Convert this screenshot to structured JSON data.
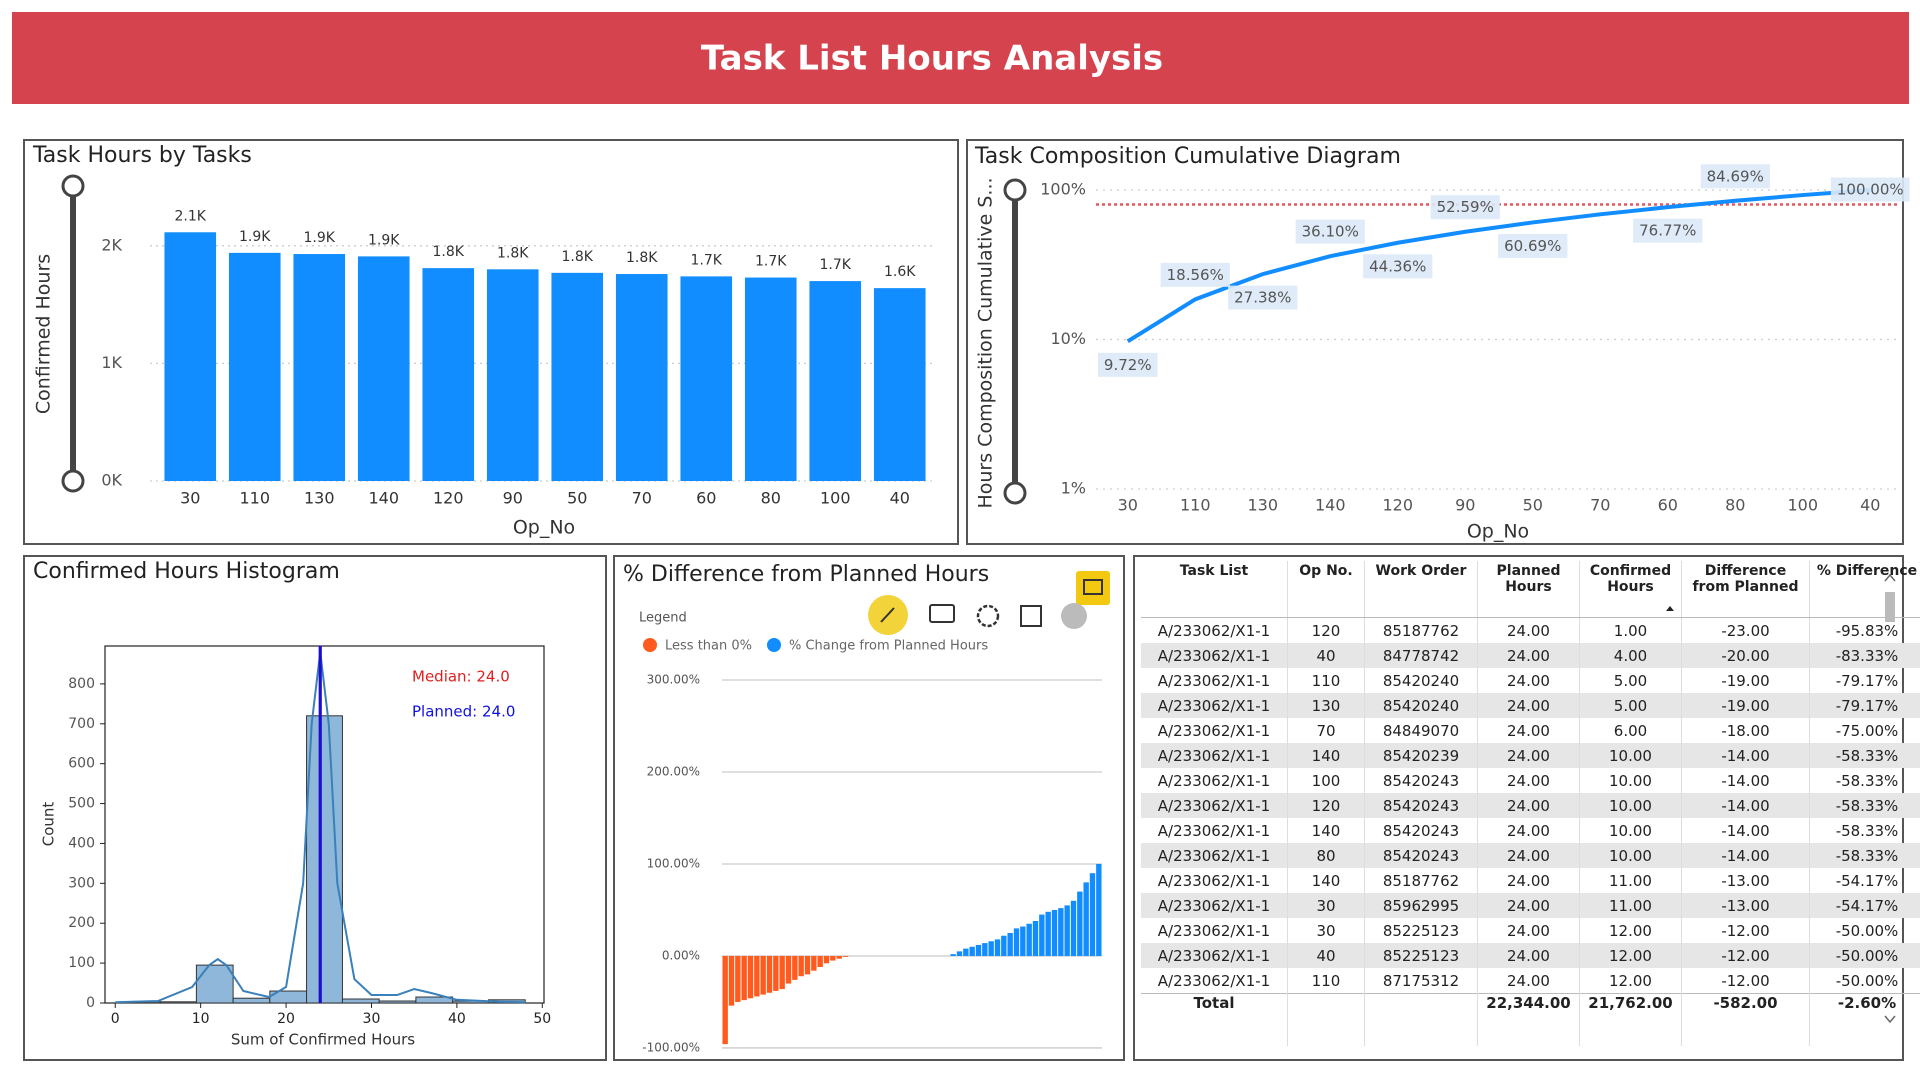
{
  "header": {
    "title": "Task List Hours Analysis"
  },
  "chart_data": [
    {
      "type": "bar",
      "title": "Task Hours by Tasks",
      "x_label": "Op_No",
      "y_label": "Confirmed Hours",
      "categories": [
        "30",
        "110",
        "130",
        "140",
        "120",
        "90",
        "50",
        "70",
        "60",
        "80",
        "100",
        "40"
      ],
      "values": [
        2115,
        1940,
        1930,
        1910,
        1810,
        1800,
        1770,
        1760,
        1740,
        1730,
        1700,
        1640
      ],
      "value_labels": [
        "2.1K",
        "1.9K",
        "1.9K",
        "1.9K",
        "1.8K",
        "1.8K",
        "1.8K",
        "1.8K",
        "1.7K",
        "1.7K",
        "1.7K",
        "1.6K"
      ],
      "color": "#118dff",
      "ylim": [
        0,
        2500
      ],
      "yticks": [
        {
          "value": 0,
          "label": "0K"
        },
        {
          "value": 1000,
          "label": "1K"
        },
        {
          "value": 2000,
          "label": "2K"
        }
      ],
      "grid": true
    },
    {
      "type": "line",
      "title": "Task Composition Cumulative Diagram",
      "x_label": "Op_No",
      "y_label": "Hours Composition Cumulative S...",
      "categories": [
        "30",
        "110",
        "130",
        "140",
        "120",
        "90",
        "50",
        "70",
        "60",
        "80",
        "100",
        "40"
      ],
      "values": [
        9.72,
        18.56,
        27.38,
        36.1,
        44.36,
        52.59,
        60.69,
        68.78,
        76.77,
        84.69,
        92.5,
        100
      ],
      "value_labels": [
        "9.72%",
        "18.56%",
        "27.38%",
        "36.10%",
        "44.36%",
        "52.59%",
        "60.69%",
        null,
        "76.77%",
        "84.69%",
        null,
        "100.00%"
      ],
      "color": "#118dff",
      "log_scale": true,
      "ylim": [
        1,
        100
      ],
      "yticks": [
        {
          "value": 1,
          "label": "1%"
        },
        {
          "value": 10,
          "label": "10%"
        },
        {
          "value": 100,
          "label": "100%"
        }
      ],
      "grid": true,
      "reference_line": 80,
      "reference_color": "#e05a62"
    },
    {
      "type": "histogram",
      "title": "Confirmed Hours Histogram",
      "x_label": "Sum of Confirmed Hours",
      "y_label": "Count",
      "bins": [
        1,
        5.3,
        9.5,
        13.8,
        18.1,
        22.4,
        26.6,
        30.9,
        35.2,
        39.5,
        43.7,
        48
      ],
      "values": [
        3,
        3,
        95,
        12,
        30,
        720,
        10,
        5,
        15,
        5,
        8
      ],
      "color": "#8fb7d9",
      "kde": {
        "x": [
          0,
          5,
          9,
          11,
          12,
          13,
          15,
          18,
          20,
          22,
          23,
          24,
          25,
          26,
          28,
          30,
          33,
          35,
          37,
          40,
          45,
          48
        ],
        "values": [
          2,
          5,
          40,
          95,
          110,
          95,
          30,
          15,
          40,
          300,
          700,
          880,
          700,
          300,
          60,
          20,
          20,
          35,
          25,
          8,
          3,
          2
        ],
        "color": "#3a80ba"
      },
      "annotations": [
        {
          "label": "Median: 24.0",
          "value": 24,
          "color": "#e02020"
        },
        {
          "label": "Planned: 24.0",
          "value": 24,
          "color": "#1010e0"
        }
      ],
      "xlim": [
        -1.2,
        50.2
      ],
      "xticks": [
        0,
        10,
        20,
        30,
        40,
        50
      ],
      "ylim": [
        0,
        895
      ],
      "yticks": [
        0,
        100,
        200,
        300,
        400,
        500,
        600,
        700,
        800
      ],
      "grid": false
    },
    {
      "type": "bar",
      "title": "% Difference from Planned Hours",
      "legend": {
        "title": "Legend",
        "items": [
          {
            "name": "Less than 0%",
            "color": "#ff5b1f"
          },
          {
            "name": "% Change from Planned Hours",
            "color": "#118dff"
          }
        ]
      },
      "values": [
        -95.83,
        -54,
        -50,
        -48,
        -46,
        -44,
        -42,
        -40,
        -38,
        -36,
        -30,
        -26,
        -22,
        -20,
        -16,
        -12,
        -8,
        -5,
        -3,
        -1,
        0,
        0,
        0,
        0,
        0,
        0,
        0,
        0,
        0,
        0,
        0,
        0,
        0,
        0,
        0,
        0,
        2,
        5,
        8,
        10,
        12,
        14,
        16,
        18,
        22,
        25,
        30,
        32,
        35,
        38,
        45,
        48,
        50,
        52,
        55,
        60,
        70,
        80,
        90,
        100
      ],
      "ylim": [
        -107,
        305
      ],
      "yticks": [
        {
          "value": -100,
          "label": "-100.00%"
        },
        {
          "value": 0,
          "label": "0.00%"
        },
        {
          "value": 100,
          "label": "100.00%"
        },
        {
          "value": 200,
          "label": "200.00%"
        },
        {
          "value": 300,
          "label": "300.00%"
        }
      ],
      "grid": true
    }
  ],
  "table": {
    "columns": [
      "Task List",
      "Op No.",
      "Work Order",
      "Planned Hours",
      "Confirmed Hours",
      "Difference from Planned",
      "% Difference"
    ],
    "rows": [
      [
        "A/233062/X1-1",
        "120",
        "85187762",
        "24.00",
        "1.00",
        "-23.00",
        "-95.83%"
      ],
      [
        "A/233062/X1-1",
        "40",
        "84778742",
        "24.00",
        "4.00",
        "-20.00",
        "-83.33%"
      ],
      [
        "A/233062/X1-1",
        "110",
        "85420240",
        "24.00",
        "5.00",
        "-19.00",
        "-79.17%"
      ],
      [
        "A/233062/X1-1",
        "130",
        "85420240",
        "24.00",
        "5.00",
        "-19.00",
        "-79.17%"
      ],
      [
        "A/233062/X1-1",
        "70",
        "84849070",
        "24.00",
        "6.00",
        "-18.00",
        "-75.00%"
      ],
      [
        "A/233062/X1-1",
        "140",
        "85420239",
        "24.00",
        "10.00",
        "-14.00",
        "-58.33%"
      ],
      [
        "A/233062/X1-1",
        "100",
        "85420243",
        "24.00",
        "10.00",
        "-14.00",
        "-58.33%"
      ],
      [
        "A/233062/X1-1",
        "120",
        "85420243",
        "24.00",
        "10.00",
        "-14.00",
        "-58.33%"
      ],
      [
        "A/233062/X1-1",
        "140",
        "85420243",
        "24.00",
        "10.00",
        "-14.00",
        "-58.33%"
      ],
      [
        "A/233062/X1-1",
        "80",
        "85420243",
        "24.00",
        "10.00",
        "-14.00",
        "-58.33%"
      ],
      [
        "A/233062/X1-1",
        "140",
        "85187762",
        "24.00",
        "11.00",
        "-13.00",
        "-54.17%"
      ],
      [
        "A/233062/X1-1",
        "30",
        "85962995",
        "24.00",
        "11.00",
        "-13.00",
        "-54.17%"
      ],
      [
        "A/233062/X1-1",
        "30",
        "85225123",
        "24.00",
        "12.00",
        "-12.00",
        "-50.00%"
      ],
      [
        "A/233062/X1-1",
        "40",
        "85225123",
        "24.00",
        "12.00",
        "-12.00",
        "-50.00%"
      ],
      [
        "A/233062/X1-1",
        "110",
        "87175312",
        "24.00",
        "12.00",
        "-12.00",
        "-50.00%"
      ]
    ],
    "total": {
      "label": "Total",
      "planned_hours": "22,344.00",
      "confirmed_hours": "21,762.00",
      "difference": "-582.00",
      "percent_difference": "-2.60%"
    }
  }
}
